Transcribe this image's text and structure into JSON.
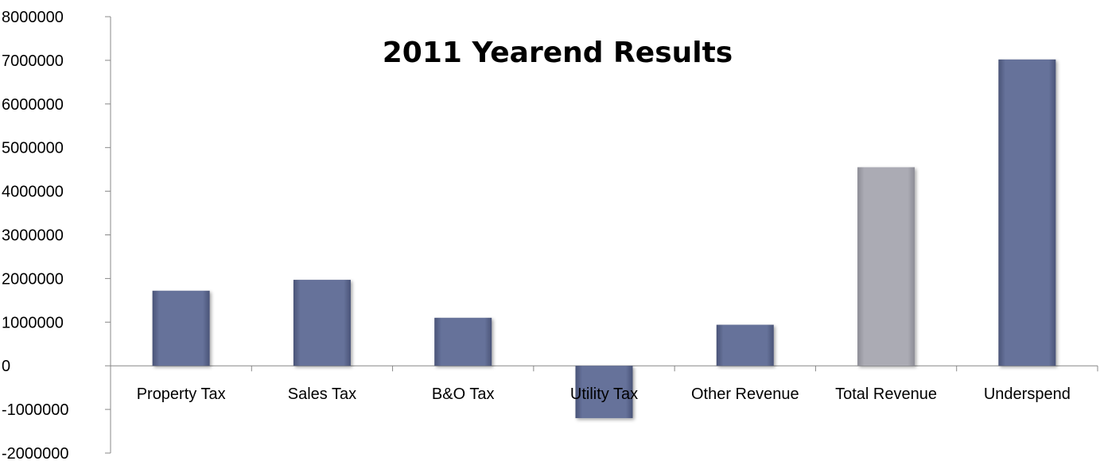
{
  "chart_data": {
    "type": "bar",
    "title": "2011 Yearend Results",
    "xlabel": "",
    "ylabel": "",
    "ylim": [
      -2000000,
      8000000
    ],
    "ytick_step": 1000000,
    "yticks": [
      "8000000",
      "7000000",
      "6000000",
      "5000000",
      "4000000",
      "3000000",
      "2000000",
      "1000000",
      "0",
      "-1000000",
      "-2000000"
    ],
    "categories": [
      "Property Tax",
      "Sales Tax",
      "B&O Tax",
      "Utility Tax",
      "Other Revenue",
      "Total Revenue",
      "Underspend"
    ],
    "values": [
      1720000,
      1970000,
      1100000,
      -1200000,
      940000,
      4550000,
      7020000
    ],
    "bar_colors": [
      "#66729a",
      "#66729a",
      "#66729a",
      "#66729a",
      "#66729a",
      "#a9a9b2",
      "#66729a"
    ],
    "grid": false,
    "legend": "none"
  }
}
